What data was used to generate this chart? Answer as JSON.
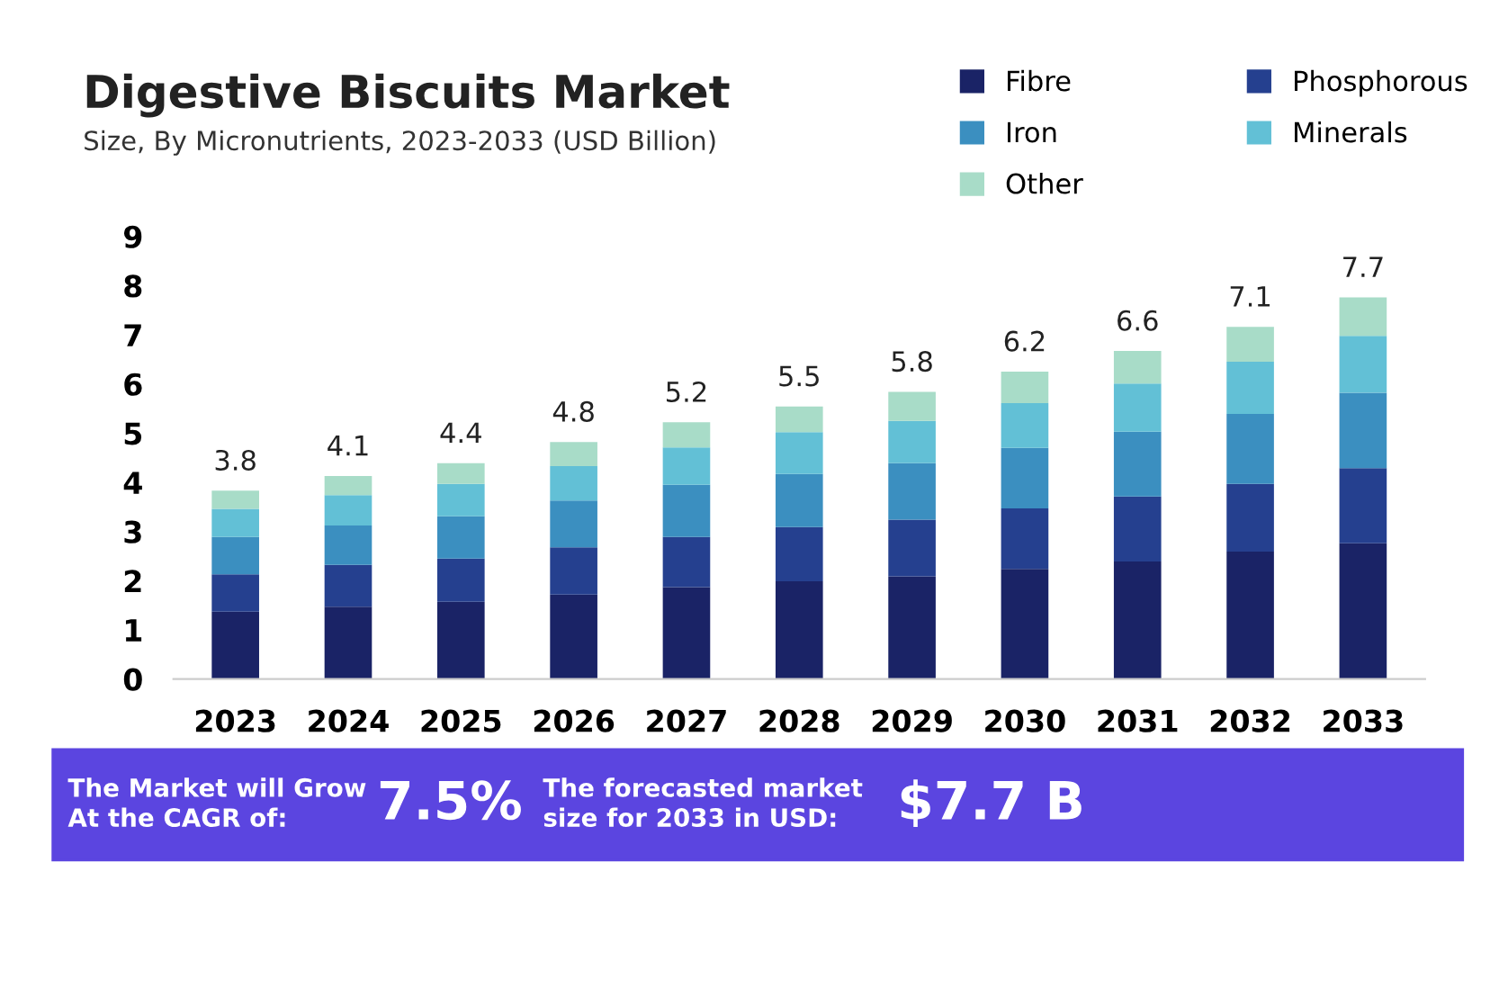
{
  "chart_data": {
    "type": "bar",
    "title": "Digestive Biscuits Market",
    "subtitle": "Size, By Micronutrients, 2023-2033 (USD Billion)",
    "categories": [
      "2023",
      "2024",
      "2025",
      "2026",
      "2027",
      "2028",
      "2029",
      "2030",
      "2031",
      "2032",
      "2033"
    ],
    "stacked": true,
    "series": [
      {
        "name": "Fibre",
        "color": "#1a2366",
        "values": [
          1.37,
          1.47,
          1.57,
          1.72,
          1.87,
          1.99,
          2.09,
          2.24,
          2.39,
          2.59,
          2.76
        ]
      },
      {
        "name": "Phosphorous",
        "color": "#25408f",
        "values": [
          0.76,
          0.85,
          0.88,
          0.96,
          1.02,
          1.1,
          1.15,
          1.23,
          1.32,
          1.38,
          1.53
        ]
      },
      {
        "name": "Iron",
        "color": "#3b8fc0",
        "values": [
          0.76,
          0.8,
          0.86,
          0.95,
          1.06,
          1.08,
          1.15,
          1.23,
          1.32,
          1.42,
          1.53
        ]
      },
      {
        "name": "Minerals",
        "color": "#62c0d6",
        "values": [
          0.57,
          0.62,
          0.66,
          0.7,
          0.76,
          0.85,
          0.86,
          0.91,
          0.98,
          1.06,
          1.16
        ]
      },
      {
        "name": "Other",
        "color": "#a8dcc8",
        "values": [
          0.37,
          0.39,
          0.42,
          0.49,
          0.51,
          0.52,
          0.59,
          0.64,
          0.66,
          0.71,
          0.78
        ]
      }
    ],
    "totals": [
      "3.8",
      "4.1",
      "4.4",
      "4.8",
      "5.2",
      "5.5",
      "5.8",
      "6.2",
      "6.6",
      "7.1",
      "7.7"
    ],
    "ylim": [
      0,
      9
    ],
    "yticks": [
      0,
      1,
      2,
      3,
      4,
      5,
      6,
      7,
      8,
      9
    ],
    "grid": false,
    "legend": "top right",
    "annotations": [
      "The Market will Grow\nAt the CAGR of:",
      "7.5%",
      "The forecasted market\nsize for 2033 in USD:",
      "$7.7 B"
    ]
  }
}
